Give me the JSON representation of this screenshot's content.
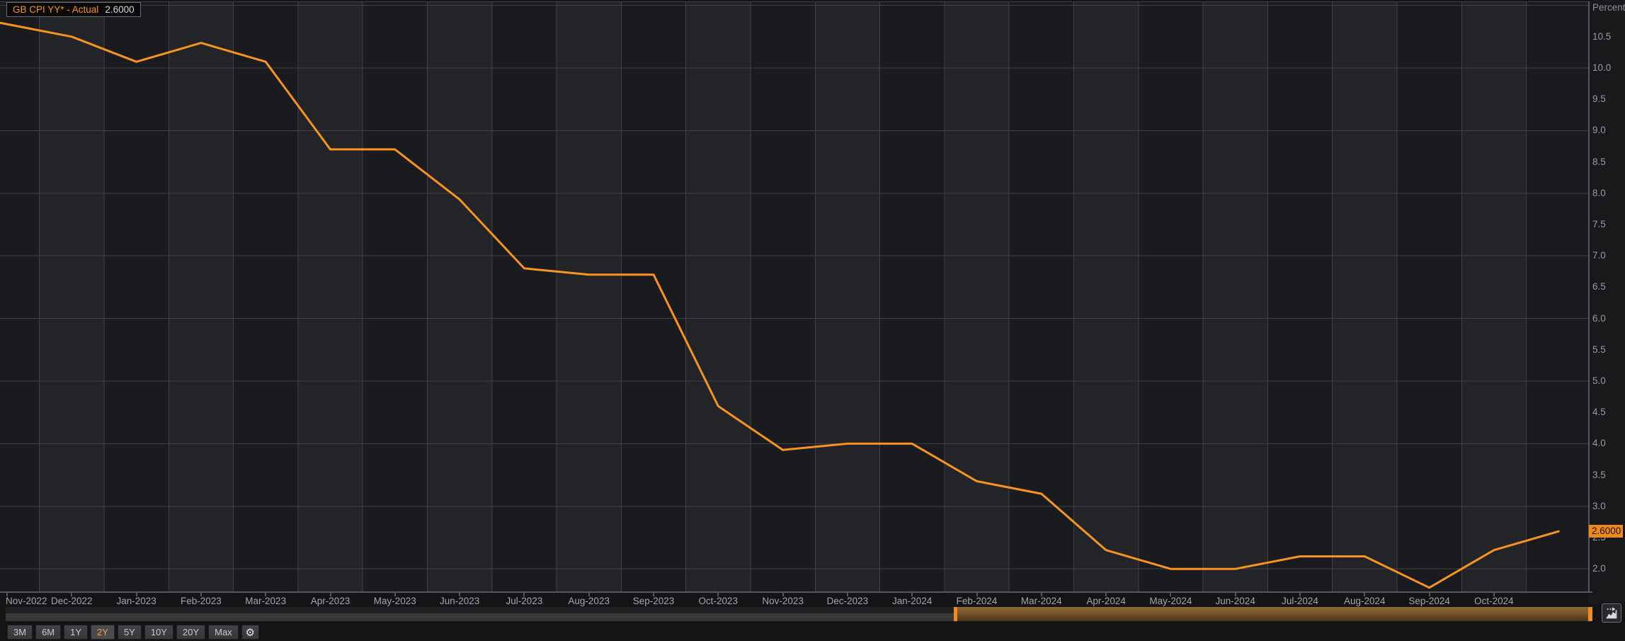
{
  "legend": {
    "series_label": "GB CPI YY* - Actual",
    "last_value": "2.6000"
  },
  "price_marker": {
    "value": "2.6000"
  },
  "y_axis": {
    "title": "Percent",
    "tick_labels": [
      "10.5",
      "10.0",
      "9.5",
      "9.0",
      "8.5",
      "8.0",
      "7.5",
      "7.0",
      "6.5",
      "6.0",
      "5.5",
      "5.0",
      "4.5",
      "4.0",
      "3.5",
      "3.0",
      "2.5",
      "2.0"
    ]
  },
  "x_axis": {
    "tick_labels": [
      "Nov-2022",
      "Dec-2022",
      "Jan-2023",
      "Feb-2023",
      "Mar-2023",
      "Apr-2023",
      "May-2023",
      "Jun-2023",
      "Jul-2023",
      "Aug-2023",
      "Sep-2023",
      "Oct-2023",
      "Nov-2023",
      "Dec-2023",
      "Jan-2024",
      "Feb-2024",
      "Mar-2024",
      "Apr-2024",
      "May-2024",
      "Jun-2024",
      "Jul-2024",
      "Aug-2024",
      "Sep-2024",
      "Oct-2024"
    ]
  },
  "chart_data": {
    "type": "line",
    "title": "GB CPI YY* - Actual",
    "ylabel": "Percent",
    "x": [
      "Nov-2022",
      "Dec-2022",
      "Jan-2023",
      "Feb-2023",
      "Mar-2023",
      "Apr-2023",
      "May-2023",
      "Jun-2023",
      "Jul-2023",
      "Aug-2023",
      "Sep-2023",
      "Oct-2023",
      "Nov-2023",
      "Dec-2023",
      "Jan-2024",
      "Feb-2024",
      "Mar-2024",
      "Apr-2024",
      "May-2024",
      "Jun-2024",
      "Jul-2024",
      "Aug-2024",
      "Sep-2024",
      "Oct-2024",
      "Nov-2024"
    ],
    "values": [
      10.7,
      10.5,
      10.1,
      10.4,
      10.1,
      8.7,
      8.7,
      7.9,
      6.8,
      6.7,
      6.7,
      4.6,
      3.9,
      4.0,
      4.0,
      3.4,
      3.2,
      2.3,
      2.0,
      2.0,
      2.2,
      2.2,
      1.7,
      2.3,
      2.6
    ],
    "last_value_label": "2.6000",
    "ylim": [
      1.6,
      11.1
    ],
    "y_gridline_step": 1.0,
    "y_label_step": 0.5,
    "grid": true,
    "legend_position": "top-left",
    "line_color": "#f79421"
  },
  "toolbar": {
    "range_buttons": [
      "3M",
      "6M",
      "1Y",
      "2Y",
      "5Y",
      "10Y",
      "20Y",
      "Max"
    ],
    "active_range": "2Y",
    "settings_icon": "gear-icon",
    "settings_glyph": "⚙"
  },
  "colors": {
    "accent": "#f79421",
    "background": "#141417",
    "band_dark": "#1a1b1e",
    "band_light": "#232428",
    "grid": "#404145",
    "axis": "#56575b",
    "label": "#9da0a5",
    "marker_bg": "#ee8a1c",
    "scroll_selected": "#77552a"
  }
}
